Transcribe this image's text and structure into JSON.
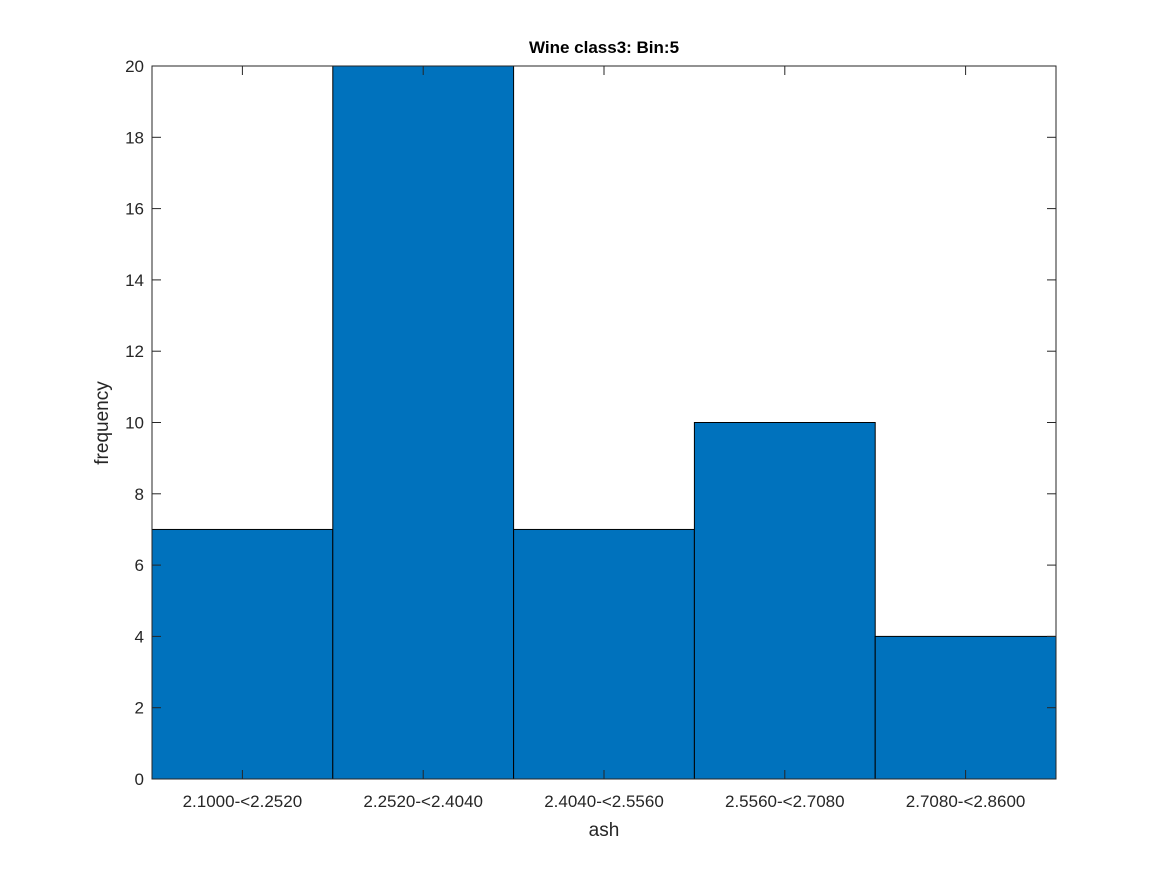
{
  "chart_data": {
    "type": "bar",
    "title": "Wine class3: Bin:5",
    "xlabel": "ash",
    "ylabel": "frequency",
    "categories": [
      "2.1000-<2.2520",
      "2.2520-<2.4040",
      "2.4040-<2.5560",
      "2.5560-<2.7080",
      "2.7080-<2.8600"
    ],
    "values": [
      7,
      20,
      7,
      10,
      4
    ],
    "ylim": [
      0,
      20
    ],
    "yticks": [
      0,
      2,
      4,
      6,
      8,
      10,
      12,
      14,
      16,
      18,
      20
    ],
    "bar_color": "#0072BD",
    "edge_color": "#000000",
    "grid": false,
    "legend": "none"
  }
}
